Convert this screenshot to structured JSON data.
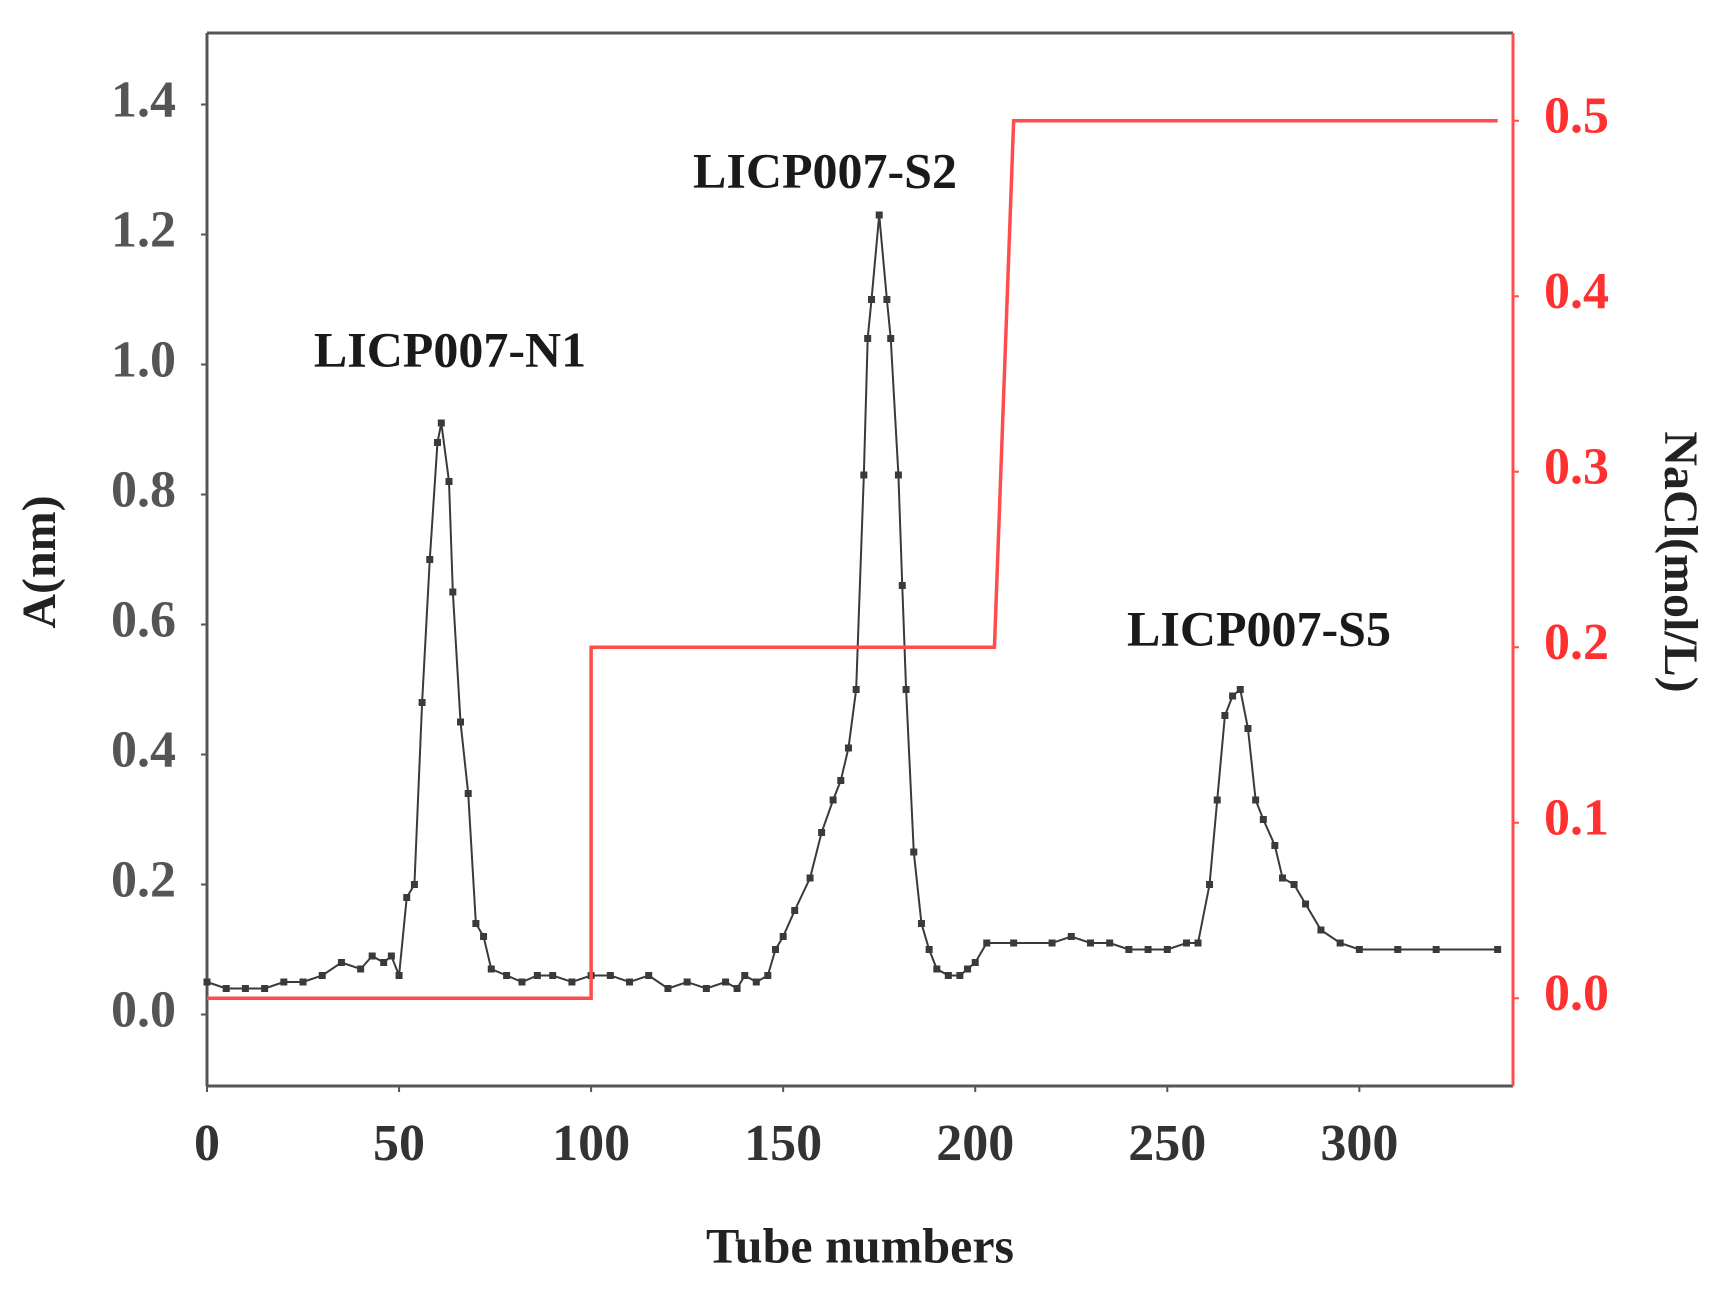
{
  "chart_data": {
    "type": "line",
    "xlabel": "Tube numbers",
    "ylabel": "A(nm)",
    "y2label": "NaCl(mol/L)",
    "annotations": [
      "LICP007-N1",
      "LICP007-S2",
      "LICP007-S5"
    ],
    "xlim": [
      0,
      340
    ],
    "xticks": [
      0,
      50,
      100,
      150,
      200,
      250,
      300
    ],
    "ylim": [
      -0.11,
      1.51
    ],
    "yticks": [
      {
        "value": 0,
        "label": "0.0"
      },
      0.2,
      0.4,
      0.6,
      0.8,
      {
        "value": 1,
        "label": "1.0"
      },
      1.2,
      1.4
    ],
    "y2lim": [
      -0.05,
      0.55
    ],
    "y2ticks": [
      {
        "value": 0,
        "label": "0.0"
      },
      0.1,
      0.2,
      0.3,
      0.4,
      0.5
    ],
    "series": [
      {
        "color": "#3a3a3a",
        "markers": true,
        "x": [
          0,
          5,
          10,
          15,
          20,
          25,
          30,
          35,
          40,
          43,
          46,
          48,
          50,
          52,
          54,
          56,
          58,
          60,
          61,
          63,
          64,
          66,
          68,
          70,
          72,
          74,
          78,
          82,
          86,
          90,
          95,
          100,
          105,
          110,
          115,
          120,
          125,
          130,
          135,
          138,
          140,
          143,
          146,
          148,
          150,
          153,
          157,
          160,
          163,
          165,
          167,
          169,
          171,
          172,
          173,
          175,
          177,
          178,
          180,
          181,
          182,
          184,
          186,
          188,
          190,
          193,
          196,
          198,
          200,
          203,
          210,
          220,
          225,
          230,
          235,
          240,
          245,
          250,
          255,
          258,
          261,
          263,
          265,
          267,
          269,
          271,
          273,
          275,
          278,
          280,
          283,
          286,
          290,
          295,
          300,
          310,
          320,
          336
        ],
        "values": [
          0.05,
          0.04,
          0.04,
          0.04,
          0.05,
          0.05,
          0.06,
          0.08,
          0.07,
          0.09,
          0.08,
          0.09,
          0.06,
          0.18,
          0.2,
          0.48,
          0.7,
          0.88,
          0.91,
          0.82,
          0.65,
          0.45,
          0.34,
          0.14,
          0.12,
          0.07,
          0.06,
          0.05,
          0.06,
          0.06,
          0.05,
          0.06,
          0.06,
          0.05,
          0.06,
          0.04,
          0.05,
          0.04,
          0.05,
          0.04,
          0.06,
          0.05,
          0.06,
          0.1,
          0.12,
          0.16,
          0.21,
          0.28,
          0.33,
          0.36,
          0.41,
          0.5,
          0.83,
          1.04,
          1.1,
          1.23,
          1.1,
          1.04,
          0.83,
          0.66,
          0.5,
          0.25,
          0.14,
          0.1,
          0.07,
          0.06,
          0.06,
          0.07,
          0.08,
          0.11,
          0.11,
          0.11,
          0.12,
          0.11,
          0.11,
          0.1,
          0.1,
          0.1,
          0.11,
          0.11,
          0.2,
          0.33,
          0.46,
          0.49,
          0.5,
          0.44,
          0.33,
          0.3,
          0.26,
          0.21,
          0.2,
          0.17,
          0.13,
          0.11,
          0.1,
          0.1,
          0.1,
          0.1
        ]
      },
      {
        "color": "#ff4d4d",
        "axis": "y2",
        "x": [
          0,
          100,
          100,
          205,
          210,
          336
        ],
        "values": [
          0,
          0,
          0.2,
          0.2,
          0.5,
          0.5
        ]
      }
    ]
  }
}
